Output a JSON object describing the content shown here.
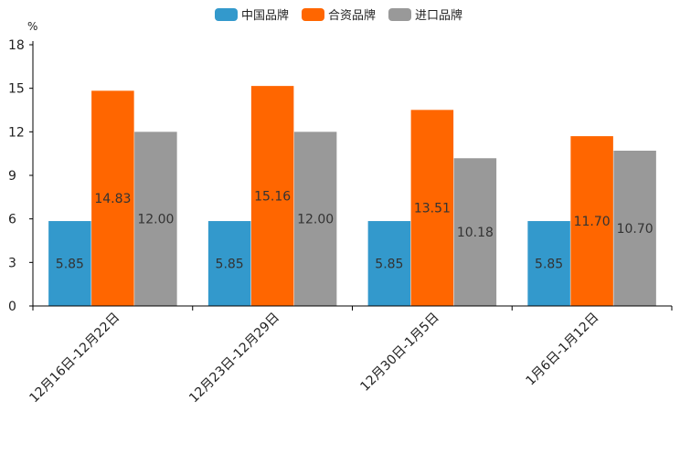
{
  "chart_data": {
    "type": "bar",
    "unit": "%",
    "categories": [
      "12月16日-12月22日",
      "12月23日-12月29日",
      "12月30日-1月5日",
      "1月6日-1月12日"
    ],
    "series": [
      {
        "name": "中国品牌",
        "color": "#3399cc",
        "values": [
          5.85,
          5.85,
          5.85,
          5.85
        ],
        "labels": [
          "5.85",
          "5.85",
          "5.85",
          "5.85"
        ]
      },
      {
        "name": "合资品牌",
        "color": "#ff6600",
        "values": [
          14.83,
          15.16,
          13.51,
          11.7
        ],
        "labels": [
          "14.83",
          "15.16",
          "13.51",
          "11.70"
        ]
      },
      {
        "name": "进口品牌",
        "color": "#999999",
        "values": [
          12.0,
          12.0,
          10.18,
          10.7
        ],
        "labels": [
          "12.00",
          "12.00",
          "10.18",
          "10.70"
        ]
      }
    ],
    "ylim": [
      0,
      18
    ],
    "yticks": [
      0,
      3,
      6,
      9,
      12,
      15,
      18
    ],
    "legend_position": "top-center",
    "grid": false
  }
}
